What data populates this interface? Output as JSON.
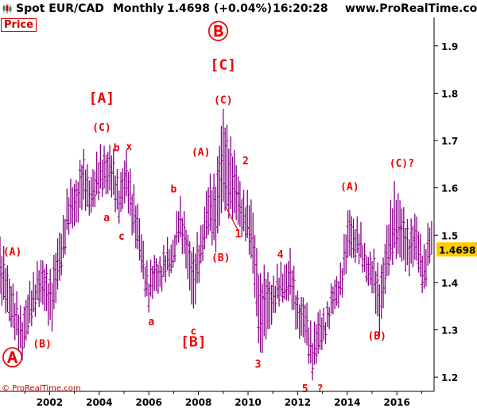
{
  "header": {
    "instrument": "Spot EUR/CAD",
    "period": "Monthly",
    "quote": "1.4698 (+0.04%)",
    "time": "16:20:28",
    "site": "www.ProRealTime.com"
  },
  "price_tab": "Price",
  "copyright": "© ProRealTime.com",
  "colors": {
    "bars": "#8a008a",
    "annotations": "#ee0000",
    "last_price_bg": "#ffcc00",
    "axis_line": "#000000"
  },
  "chart_data": {
    "type": "ohlc",
    "title": "Spot EUR/CAD Monthly",
    "x_range": [
      2000.0,
      2017.5
    ],
    "y_range": [
      1.17,
      1.96
    ],
    "y_ticks": [
      1.2,
      1.3,
      1.4,
      1.5,
      1.6,
      1.7,
      1.8,
      1.9
    ],
    "x_ticks": [
      2002,
      2004,
      2006,
      2008,
      2010,
      2012,
      2014,
      2016
    ],
    "last_price": "1.4698",
    "series": [
      {
        "points": [
          [
            2000.0,
            1.47,
            1.36
          ],
          [
            2000.3,
            1.44,
            1.34
          ],
          [
            2000.6,
            1.36,
            1.28
          ],
          [
            2000.9,
            1.34,
            1.25
          ],
          [
            2001.2,
            1.38,
            1.3
          ],
          [
            2001.5,
            1.44,
            1.36
          ],
          [
            2001.8,
            1.43,
            1.34
          ],
          [
            2002.1,
            1.42,
            1.31
          ],
          [
            2002.4,
            1.5,
            1.4
          ],
          [
            2002.7,
            1.58,
            1.5
          ],
          [
            2003.0,
            1.61,
            1.52
          ],
          [
            2003.3,
            1.66,
            1.56
          ],
          [
            2003.6,
            1.63,
            1.55
          ],
          [
            2003.9,
            1.65,
            1.57
          ],
          [
            2004.2,
            1.69,
            1.6
          ],
          [
            2004.5,
            1.67,
            1.58
          ],
          [
            2004.8,
            1.62,
            1.54
          ],
          [
            2005.1,
            1.66,
            1.57
          ],
          [
            2005.4,
            1.6,
            1.5
          ],
          [
            2005.7,
            1.5,
            1.42
          ],
          [
            2006.0,
            1.42,
            1.35
          ],
          [
            2006.3,
            1.45,
            1.38
          ],
          [
            2006.6,
            1.46,
            1.4
          ],
          [
            2006.9,
            1.48,
            1.42
          ],
          [
            2007.2,
            1.56,
            1.49
          ],
          [
            2007.5,
            1.53,
            1.44
          ],
          [
            2007.8,
            1.45,
            1.33
          ],
          [
            2008.1,
            1.52,
            1.44
          ],
          [
            2008.4,
            1.6,
            1.5
          ],
          [
            2008.7,
            1.63,
            1.48
          ],
          [
            2009.0,
            1.75,
            1.56
          ],
          [
            2009.3,
            1.7,
            1.55
          ],
          [
            2009.6,
            1.62,
            1.52
          ],
          [
            2009.9,
            1.58,
            1.5
          ],
          [
            2010.2,
            1.55,
            1.42
          ],
          [
            2010.5,
            1.4,
            1.24
          ],
          [
            2010.8,
            1.42,
            1.3
          ],
          [
            2011.1,
            1.4,
            1.34
          ],
          [
            2011.4,
            1.44,
            1.37
          ],
          [
            2011.7,
            1.45,
            1.36
          ],
          [
            2012.0,
            1.38,
            1.3
          ],
          [
            2012.3,
            1.35,
            1.27
          ],
          [
            2012.6,
            1.3,
            1.21
          ],
          [
            2012.9,
            1.33,
            1.25
          ],
          [
            2013.2,
            1.35,
            1.3
          ],
          [
            2013.5,
            1.4,
            1.34
          ],
          [
            2013.8,
            1.45,
            1.38
          ],
          [
            2014.1,
            1.56,
            1.46
          ],
          [
            2014.4,
            1.52,
            1.45
          ],
          [
            2014.7,
            1.48,
            1.42
          ],
          [
            2015.0,
            1.45,
            1.38
          ],
          [
            2015.3,
            1.42,
            1.3
          ],
          [
            2015.6,
            1.5,
            1.4
          ],
          [
            2015.9,
            1.61,
            1.47
          ],
          [
            2016.2,
            1.55,
            1.44
          ],
          [
            2016.5,
            1.52,
            1.43
          ],
          [
            2016.8,
            1.53,
            1.44
          ],
          [
            2017.1,
            1.47,
            1.38
          ],
          [
            2017.4,
            1.53,
            1.46
          ]
        ]
      }
    ],
    "annotations": [
      {
        "text": "Ⓐ",
        "x": 2000.5,
        "y": 1.225,
        "size": "big"
      },
      {
        "text": "Ⓑ",
        "x": 2008.8,
        "y": 1.915,
        "size": "big"
      },
      {
        "text": "(A)",
        "x": 2000.5,
        "y": 1.458
      },
      {
        "text": "(B)",
        "x": 2001.7,
        "y": 1.263
      },
      {
        "text": "[A]",
        "x": 2004.1,
        "y": 1.78,
        "size": "mid"
      },
      {
        "text": "(C)",
        "x": 2004.1,
        "y": 1.72
      },
      {
        "text": "b",
        "x": 2004.7,
        "y": 1.677
      },
      {
        "text": "x",
        "x": 2005.2,
        "y": 1.68
      },
      {
        "text": "a",
        "x": 2004.3,
        "y": 1.53
      },
      {
        "text": "c",
        "x": 2004.9,
        "y": 1.49
      },
      {
        "text": "a",
        "x": 2006.1,
        "y": 1.31
      },
      {
        "text": "b",
        "x": 2007.0,
        "y": 1.59
      },
      {
        "text": "c",
        "x": 2007.8,
        "y": 1.29
      },
      {
        "text": "[B]",
        "x": 2007.8,
        "y": 1.265,
        "size": "mid"
      },
      {
        "text": "(A)",
        "x": 2008.1,
        "y": 1.668
      },
      {
        "text": "(B)",
        "x": 2008.9,
        "y": 1.445
      },
      {
        "text": "[C]",
        "x": 2009.0,
        "y": 1.85,
        "size": "mid"
      },
      {
        "text": "(C)",
        "x": 2009.0,
        "y": 1.778
      },
      {
        "text": "2",
        "x": 2009.9,
        "y": 1.65
      },
      {
        "text": "1",
        "x": 2009.6,
        "y": 1.495
      },
      {
        "text": "3",
        "x": 2010.4,
        "y": 1.22
      },
      {
        "text": "4",
        "x": 2011.3,
        "y": 1.452
      },
      {
        "text": "5",
        "x": 2012.3,
        "y": 1.168
      },
      {
        "text": "?",
        "x": 2012.9,
        "y": 1.168
      },
      {
        "text": "(A)",
        "x": 2014.1,
        "y": 1.595
      },
      {
        "text": "(B)",
        "x": 2015.2,
        "y": 1.28
      },
      {
        "text": "(C)?",
        "x": 2016.2,
        "y": 1.645
      }
    ]
  }
}
